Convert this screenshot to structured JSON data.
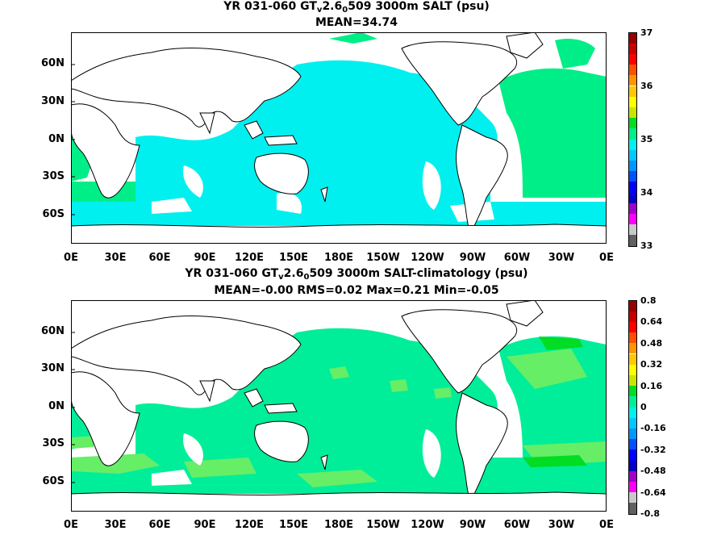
{
  "panel1": {
    "title_pre": "YR 031-060 GT",
    "title_sub1": "v",
    "title_mid": "2.6",
    "title_sub2": "0",
    "title_post": "509 3000m SALT (psu)",
    "stats": "MEAN=34.74",
    "colorbar_labels": [
      "37",
      "36",
      "35",
      "34",
      "33"
    ]
  },
  "panel2": {
    "title_pre": "YR 031-060 GT",
    "title_sub1": "v",
    "title_mid": "2.6",
    "title_sub2": "0",
    "title_post": "509 3000m SALT-climatology (psu)",
    "stats": "MEAN=-0.00   RMS=0.02   Max=0.21   Min=-0.05",
    "colorbar_labels": [
      "0.8",
      "0.64",
      "0.48",
      "0.32",
      "0.16",
      "0",
      "-0.16",
      "-0.32",
      "-0.48",
      "-0.64",
      "-0.8"
    ]
  },
  "lat_labels": [
    "60N",
    "30N",
    "0N",
    "30S",
    "60S"
  ],
  "lon_labels": [
    "0E",
    "30E",
    "60E",
    "90E",
    "120E",
    "150E",
    "180E",
    "150W",
    "120W",
    "90W",
    "60W",
    "30W",
    "0E"
  ],
  "colors": {
    "panel1_pacific": "#00f0f0",
    "panel1_atlantic": "#00ee88",
    "panel2_base": "#00ee99",
    "panel2_warm": "#66ee66",
    "panel2_strong": "#00dd22",
    "land": "#ffffff"
  },
  "colorbar_scale": [
    "#606060",
    "#c8c8c8",
    "#ff00ff",
    "#a000c8",
    "#0000c8",
    "#0050ff",
    "#0096ff",
    "#00c8ff",
    "#00f0f0",
    "#00ee99",
    "#00dd22",
    "#66ee66",
    "#c8e600",
    "#ffff00",
    "#ffc800",
    "#ff9600",
    "#ff5000",
    "#ff0000",
    "#c80000",
    "#960000"
  ]
}
